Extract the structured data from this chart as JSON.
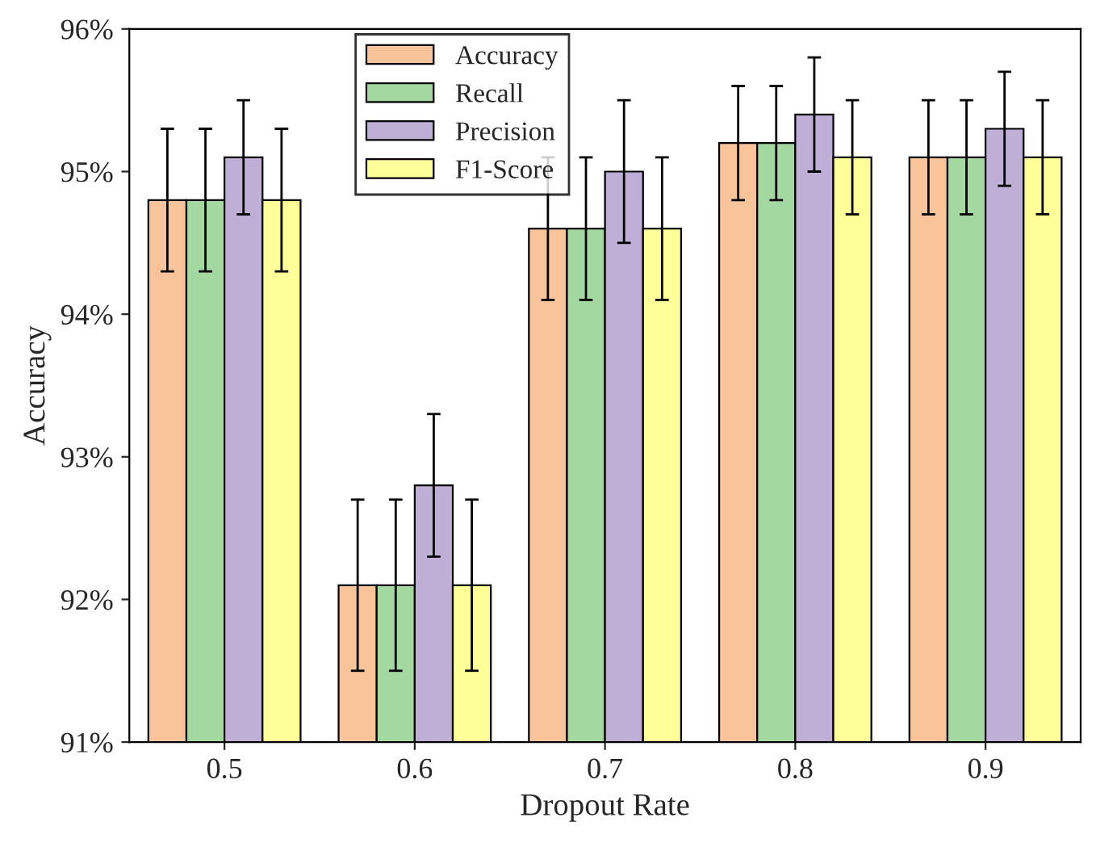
{
  "chart_data": {
    "type": "bar",
    "xlabel": "Dropout Rate",
    "ylabel": "Accuracy",
    "categories": [
      "0.5",
      "0.6",
      "0.7",
      "0.8",
      "0.9"
    ],
    "series": [
      {
        "name": "Accuracy",
        "color": "#f9c49a",
        "values": [
          94.8,
          92.1,
          94.6,
          95.2,
          95.1
        ],
        "errors": [
          0.5,
          0.6,
          0.5,
          0.4,
          0.4
        ]
      },
      {
        "name": "Recall",
        "color": "#a3d9a0",
        "values": [
          94.8,
          92.1,
          94.6,
          95.2,
          95.1
        ],
        "errors": [
          0.5,
          0.6,
          0.5,
          0.4,
          0.4
        ]
      },
      {
        "name": "Precision",
        "color": "#bfaed6",
        "values": [
          95.1,
          92.8,
          95.0,
          95.4,
          95.3
        ],
        "errors": [
          0.4,
          0.5,
          0.5,
          0.4,
          0.4
        ]
      },
      {
        "name": "F1-Score",
        "color": "#ffff99",
        "values": [
          94.8,
          92.1,
          94.6,
          95.1,
          95.1
        ],
        "errors": [
          0.5,
          0.6,
          0.5,
          0.4,
          0.4
        ]
      }
    ],
    "ylim": [
      91,
      96
    ],
    "yticks": [
      {
        "value": 91,
        "label": "91%"
      },
      {
        "value": 92,
        "label": "92%"
      },
      {
        "value": 93,
        "label": "93%"
      },
      {
        "value": 94,
        "label": "94%"
      },
      {
        "value": 95,
        "label": "95%"
      },
      {
        "value": 96,
        "label": "96%"
      }
    ],
    "legend": "top",
    "grid": false
  }
}
